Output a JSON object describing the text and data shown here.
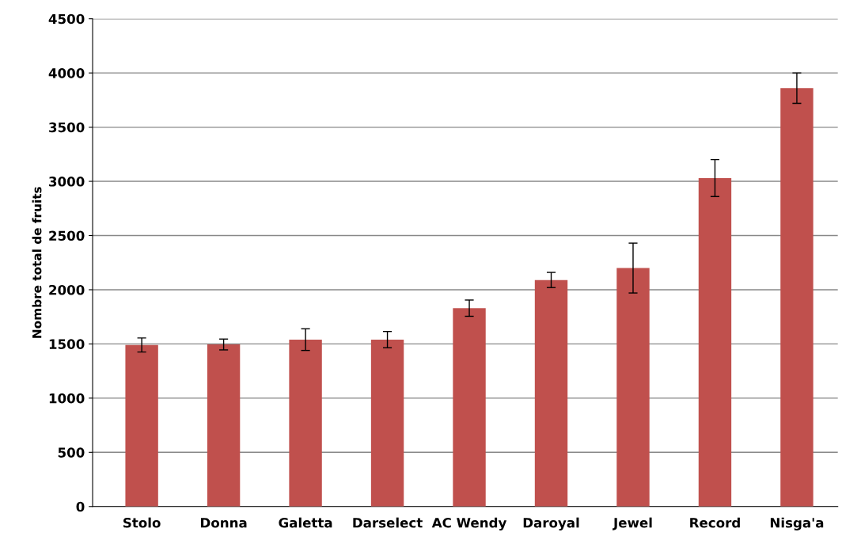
{
  "chart_data": {
    "type": "bar",
    "ylabel": "Nombre total de fruits",
    "categories": [
      "Stolo",
      "Donna",
      "Galetta",
      "Darselect",
      "AC Wendy",
      "Daroyal",
      "Jewel",
      "Record",
      "Nisga'a"
    ],
    "values": [
      1490,
      1495,
      1540,
      1540,
      1830,
      2090,
      2200,
      3030,
      3860
    ],
    "errors": [
      65,
      50,
      100,
      75,
      75,
      70,
      230,
      170,
      140
    ],
    "color": "#c0504d",
    "ylim": [
      0,
      4500
    ],
    "yticks": [
      0,
      500,
      1000,
      1500,
      2000,
      2500,
      3000,
      3500,
      4000,
      4500
    ],
    "grid": "y"
  }
}
